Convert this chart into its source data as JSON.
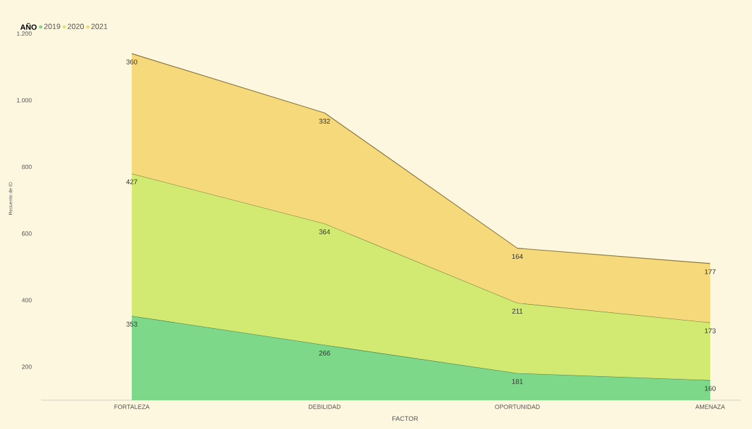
{
  "chart_data": {
    "type": "area",
    "stacked": true,
    "xlabel": "FACTOR",
    "ylabel": "Recuento de ID",
    "legend_title": "AÑO",
    "legend": "top left",
    "data_labels": true,
    "categories": [
      "FORTALEZA",
      "DEBILIDAD",
      "OPORTUNIDAD",
      "AMENAZA"
    ],
    "ylim": [
      100,
      1200
    ],
    "yticks": [
      200,
      400,
      600,
      800,
      {
        "value": 1000,
        "label": "1.000"
      },
      {
        "value": 1200,
        "label": "1.200"
      }
    ],
    "series": [
      {
        "name": "2019",
        "color": "#7dd88a",
        "values": [
          353,
          266,
          181,
          160
        ]
      },
      {
        "name": "2020",
        "color": "#d2ea72",
        "values": [
          427,
          364,
          211,
          173
        ]
      },
      {
        "name": "2021",
        "color": "#f5d97a",
        "values": [
          360,
          332,
          164,
          177
        ]
      }
    ]
  }
}
